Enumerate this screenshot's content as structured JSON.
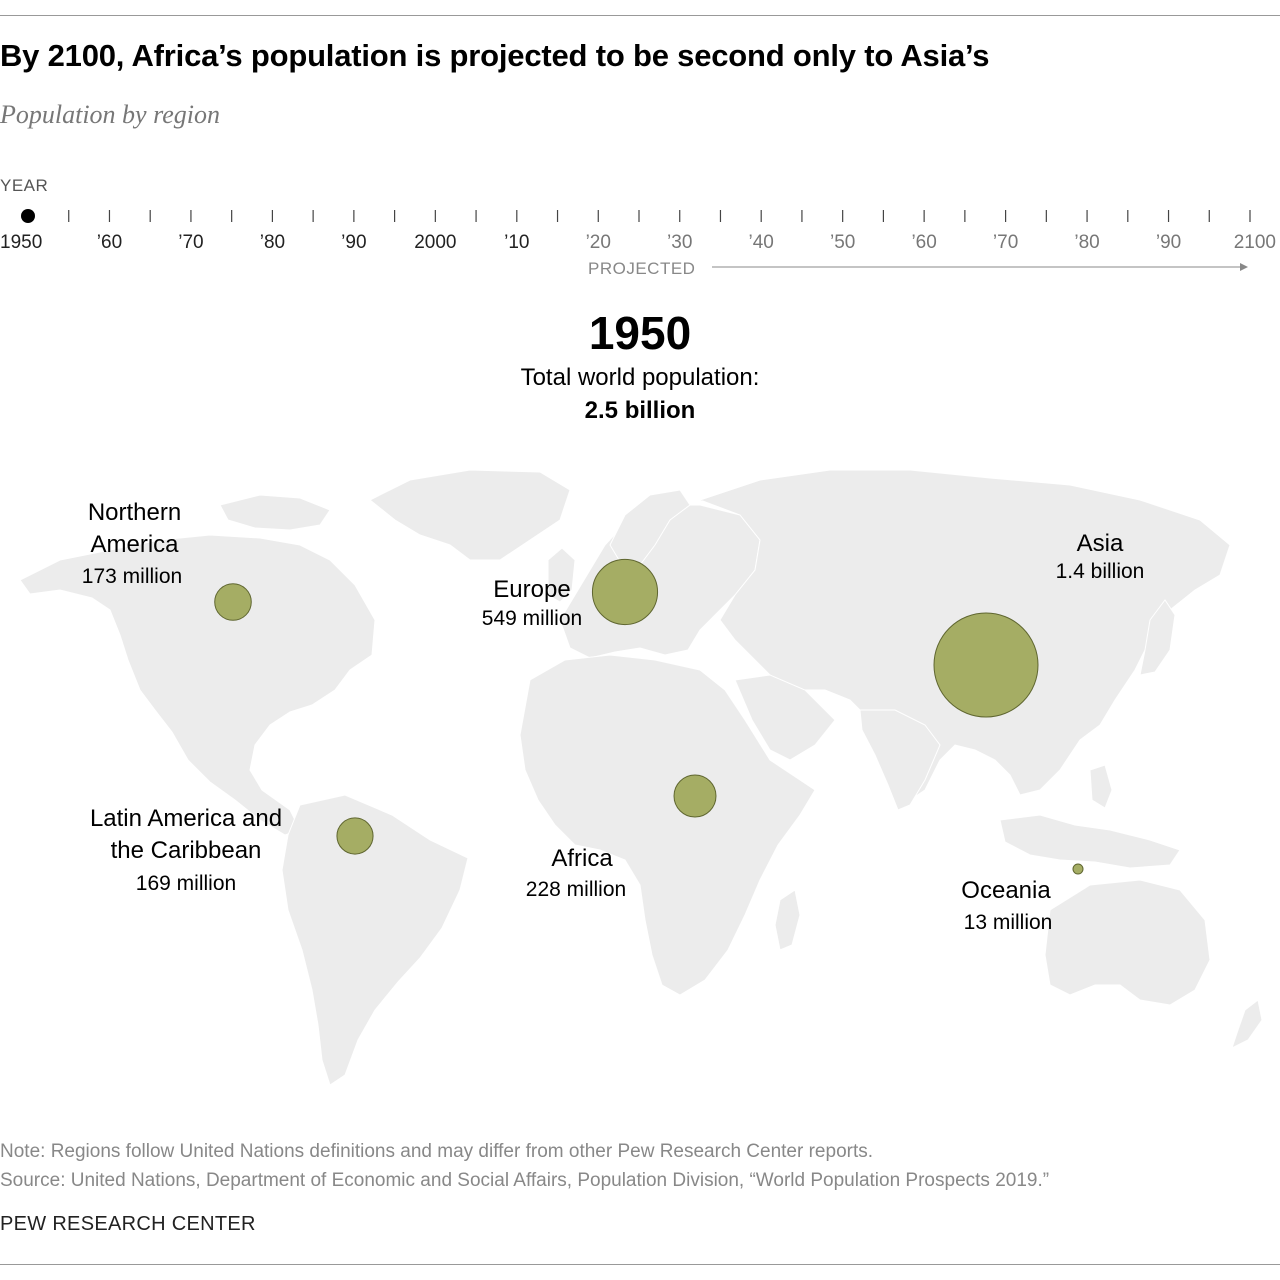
{
  "title": "By 2100, Africa’s population is projected to be second only to Asia’s",
  "subtitle": "Population by region",
  "timeline": {
    "label": "YEAR",
    "ticks": [
      "1950",
      "’60",
      "’70",
      "’80",
      "’90",
      "2000",
      "’10",
      "’20",
      "’30",
      "’40",
      "’50",
      "’60",
      "’70",
      "’80",
      "’90",
      "2100"
    ],
    "tick_years": [
      1950,
      1960,
      1970,
      1980,
      1990,
      2000,
      2010,
      2020,
      2030,
      2040,
      2050,
      2060,
      2070,
      2080,
      2090,
      2100
    ],
    "selected_year": 1950,
    "projected_label": "PROJECTED",
    "projected_from": 2020
  },
  "selected": {
    "year": "1950",
    "total_label": "Total world population:",
    "total_value": "2.5 billion"
  },
  "regions": [
    {
      "name": "Northern America",
      "value_label": "173 million",
      "population_millions": 173
    },
    {
      "name": "Europe",
      "value_label": "549 million",
      "population_millions": 549
    },
    {
      "name": "Asia",
      "value_label": "1.4 billion",
      "population_millions": 1400
    },
    {
      "name": "Latin America and the Caribbean",
      "value_label": "169 million",
      "population_millions": 169
    },
    {
      "name": "Africa",
      "value_label": "228 million",
      "population_millions": 228
    },
    {
      "name": "Oceania",
      "value_label": "13 million",
      "population_millions": 13
    }
  ],
  "colors": {
    "bubble": "#a5ad64",
    "bubble_stroke": "#5f6630",
    "land": "#ececec",
    "timeline": "#555555",
    "projected": "#888888"
  },
  "note": "Note: Regions follow United Nations definitions and may differ from other Pew Research Center reports.",
  "source": "Source: United Nations, Department of Economic and Social Affairs, Population Division, “World Population Prospects 2019.”",
  "brand": "PEW RESEARCH CENTER"
}
